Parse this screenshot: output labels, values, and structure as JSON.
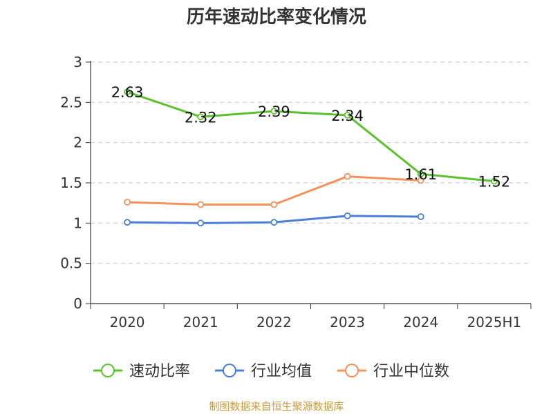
{
  "title": "历年速动比率变化情况",
  "source": "制图数据来自恒生聚源数据库",
  "chart_data": {
    "type": "line",
    "title": "历年速动比率变化情况",
    "categories": [
      "2020",
      "2021",
      "2022",
      "2023",
      "2024",
      "2025H1"
    ],
    "y_ticks": [
      "0",
      "0.5",
      "1",
      "1.5",
      "2",
      "2.5",
      "3"
    ],
    "ylim": [
      0,
      3
    ],
    "grid": true,
    "legend_position": "bottom",
    "series": [
      {
        "name": "速动比率",
        "color": "#5bc12e",
        "show_labels": true,
        "values": [
          2.63,
          2.32,
          2.39,
          2.34,
          1.61,
          1.52
        ],
        "labels": [
          "2.63",
          "2.32",
          "2.39",
          "2.34",
          "1.61",
          "1.52"
        ]
      },
      {
        "name": "行业均值",
        "color": "#4a7fd8",
        "show_labels": false,
        "values": [
          1.01,
          1.0,
          1.01,
          1.09,
          1.08,
          null
        ]
      },
      {
        "name": "行业中位数",
        "color": "#f5915a",
        "show_labels": false,
        "values": [
          1.26,
          1.23,
          1.23,
          1.58,
          1.53,
          null
        ]
      }
    ]
  }
}
